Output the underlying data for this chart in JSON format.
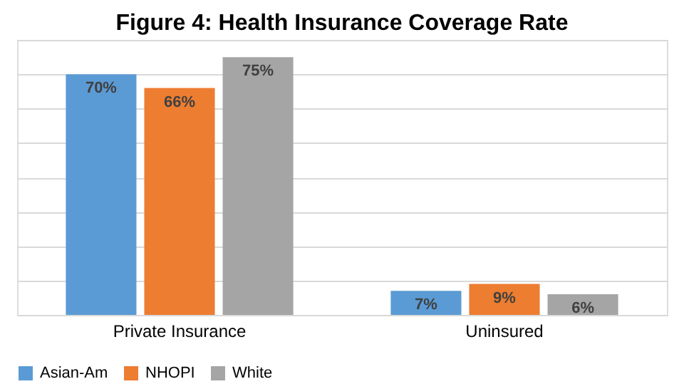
{
  "chart_data": {
    "type": "bar",
    "title": "Figure 4: Health Insurance Coverage Rate",
    "categories": [
      "Private Insurance",
      "Uninsured"
    ],
    "series": [
      {
        "name": "Asian-Am",
        "color": "#5b9bd5",
        "values": [
          70,
          7
        ],
        "value_labels": [
          "70%",
          "7%"
        ]
      },
      {
        "name": "NHOPI",
        "color": "#ed7d31",
        "values": [
          66,
          9
        ],
        "value_labels": [
          "66%",
          "9%"
        ]
      },
      {
        "name": "White",
        "color": "#a5a5a5",
        "values": [
          75,
          6
        ],
        "value_labels": [
          "75%",
          "6%"
        ]
      }
    ],
    "ylim": [
      0,
      80
    ],
    "yticks": [
      {
        "value": 0,
        "label": null
      },
      {
        "value": 10,
        "label": null
      },
      {
        "value": 20,
        "label": null
      },
      {
        "value": 30,
        "label": null
      },
      {
        "value": 40,
        "label": null
      },
      {
        "value": 50,
        "label": null
      },
      {
        "value": 60,
        "label": null
      },
      {
        "value": 70,
        "label": null
      },
      {
        "value": 80,
        "label": null
      }
    ],
    "tick_labels": "x",
    "grid": "y",
    "legend": "bottom"
  }
}
